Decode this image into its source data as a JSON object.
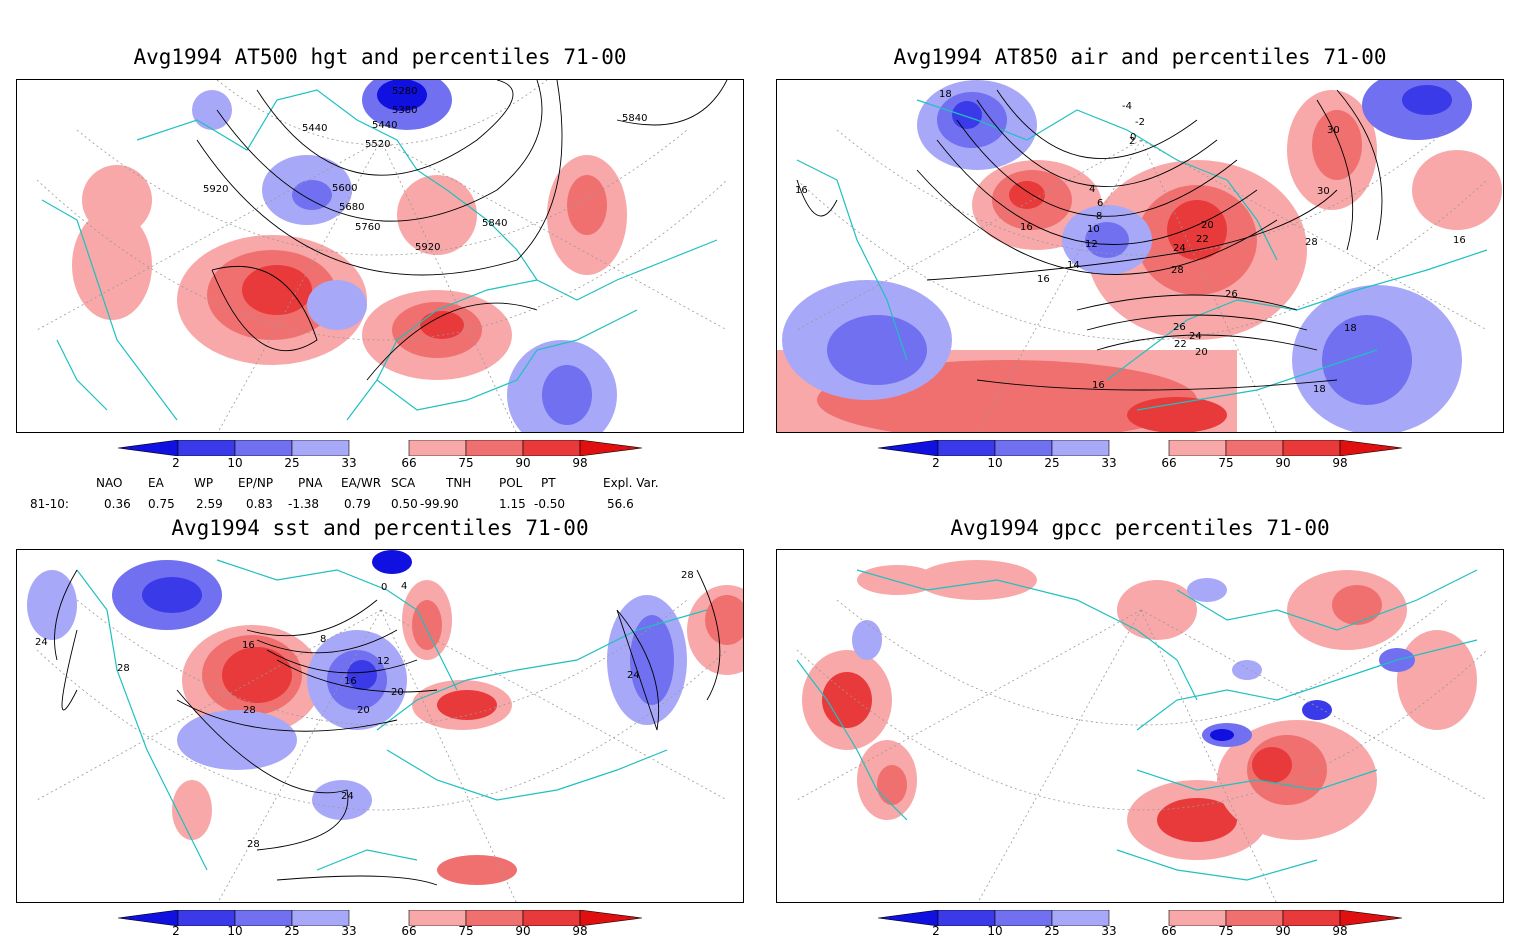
{
  "panels": [
    {
      "id": "p1",
      "title": "Avg1994 AT500 hgt and percentiles 71-00",
      "contour_labels": [
        "5280",
        "5380",
        "5440",
        "5440",
        "5520",
        "5600",
        "5680",
        "5760",
        "5840",
        "5840",
        "5920",
        "5920"
      ]
    },
    {
      "id": "p2",
      "title": "Avg1994 AT850 air and percentiles 71-00",
      "contour_labels": [
        "-4",
        "-2",
        "0",
        "2",
        "4",
        "6",
        "8",
        "10",
        "12",
        "14",
        "16",
        "16",
        "16",
        "16",
        "16",
        "18",
        "18",
        "18",
        "20",
        "20",
        "22",
        "22",
        "24",
        "24",
        "26",
        "26",
        "28",
        "28",
        "30",
        "30"
      ]
    },
    {
      "id": "p3",
      "title": "Avg1994 sst and percentiles 71-00",
      "contour_labels": [
        "0",
        "4",
        "8",
        "12",
        "16",
        "16",
        "20",
        "20",
        "24",
        "24",
        "24",
        "28",
        "28",
        "28",
        "28"
      ]
    },
    {
      "id": "p4",
      "title": "Avg1994 gpcc percentiles 71-00",
      "contour_labels": []
    }
  ],
  "colorbar": {
    "ticks": [
      "2",
      "10",
      "25",
      "33",
      "66",
      "75",
      "90",
      "98"
    ],
    "colors": [
      "#1010e0",
      "#3a3ae8",
      "#7070f0",
      "#a8a8f8",
      "#ffffff",
      "#f8a8a8",
      "#f07070",
      "#e83a3a",
      "#e01010"
    ]
  },
  "indices": {
    "headers": [
      "NAO",
      "EA",
      "WP",
      "EP/NP",
      "PNA",
      "EA/WR",
      "SCA",
      "TNH",
      "POL",
      "PT",
      "Expl. Var."
    ],
    "row_label": "81-10:",
    "values": [
      "0.36",
      "0.75",
      "2.59",
      "0.83",
      "-1.38",
      "0.79",
      "0.50",
      "-99.90",
      "1.15",
      "-0.50",
      "56.6"
    ]
  }
}
